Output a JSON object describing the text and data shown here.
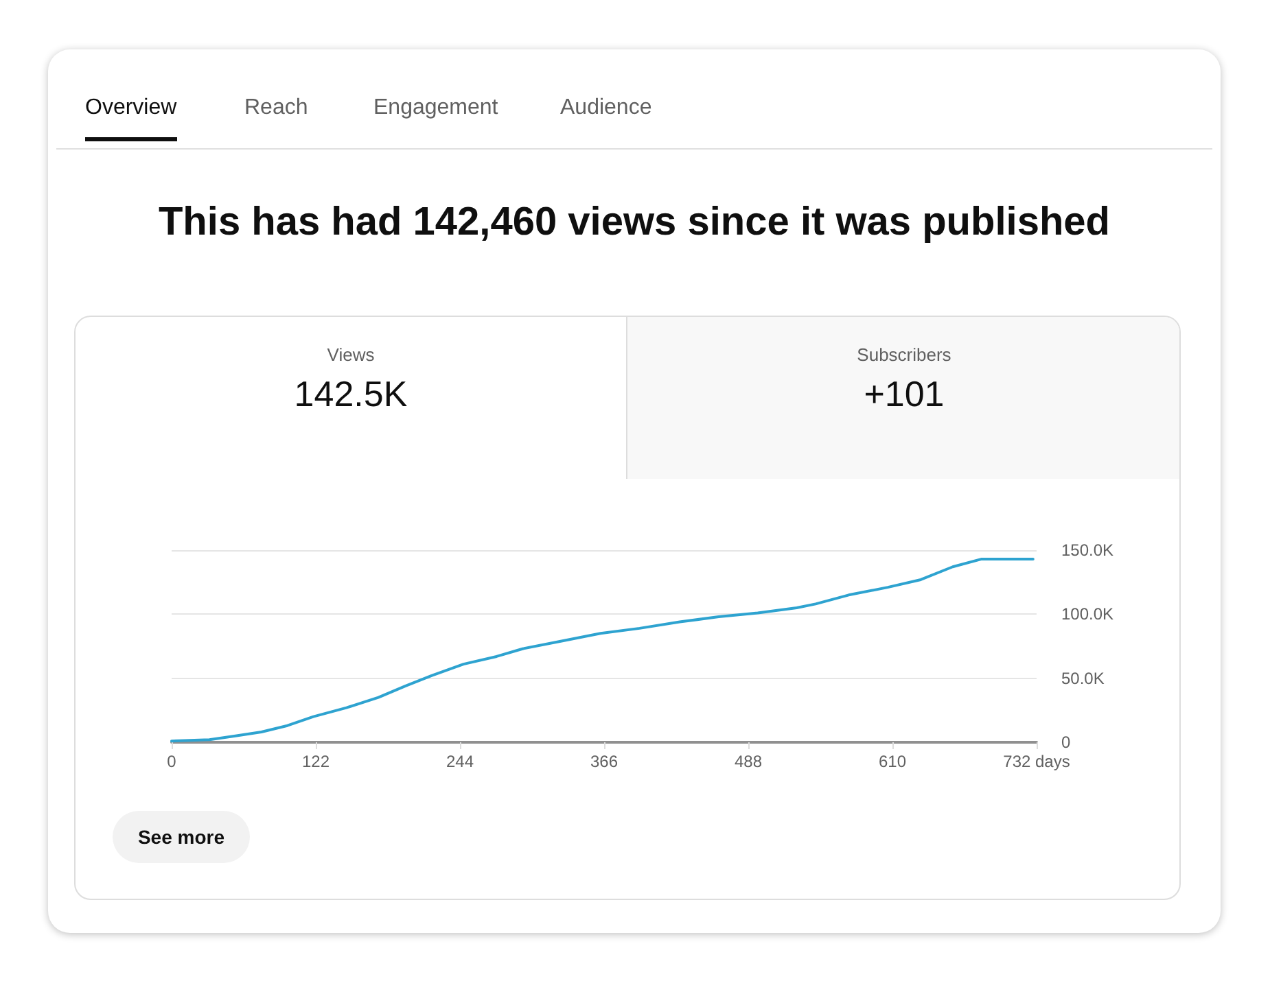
{
  "chart_data": {
    "type": "line",
    "title": "This has had 142,460 views since it was published",
    "annotations": [
      "Overview",
      "Reach",
      "Engagement",
      "Audience",
      "Views",
      "142.5K",
      "Subscribers",
      "+101",
      "See more"
    ],
    "x": [
      0,
      32,
      54,
      76,
      98,
      120,
      148,
      175,
      198,
      220,
      247,
      275,
      297,
      330,
      363,
      396,
      430,
      463,
      496,
      529,
      545,
      573,
      606,
      634,
      661,
      685,
      729
    ],
    "series": [
      {
        "color": "#2ea3d0",
        "values": [
          1000,
          2000,
          5000,
          8000,
          13000,
          20000,
          27000,
          35000,
          44000,
          52000,
          61000,
          67000,
          73000,
          79000,
          85000,
          89000,
          94000,
          98000,
          101000,
          105000,
          108000,
          115000,
          121000,
          127000,
          137000,
          143000,
          143000
        ]
      }
    ],
    "xlim": [
      0,
      732
    ],
    "xticks": [
      0,
      122,
      244,
      366,
      488,
      610,
      {
        "value": 732,
        "label": "732 days"
      }
    ],
    "ylim": [
      0,
      150000
    ],
    "yticks": [
      0,
      {
        "value": 50000,
        "label": "50.0K"
      },
      {
        "value": 100000,
        "label": "100.0K"
      },
      {
        "value": 150000,
        "label": "150.0K"
      }
    ],
    "grid": "y",
    "marker": "none",
    "line_style": "solid"
  }
}
